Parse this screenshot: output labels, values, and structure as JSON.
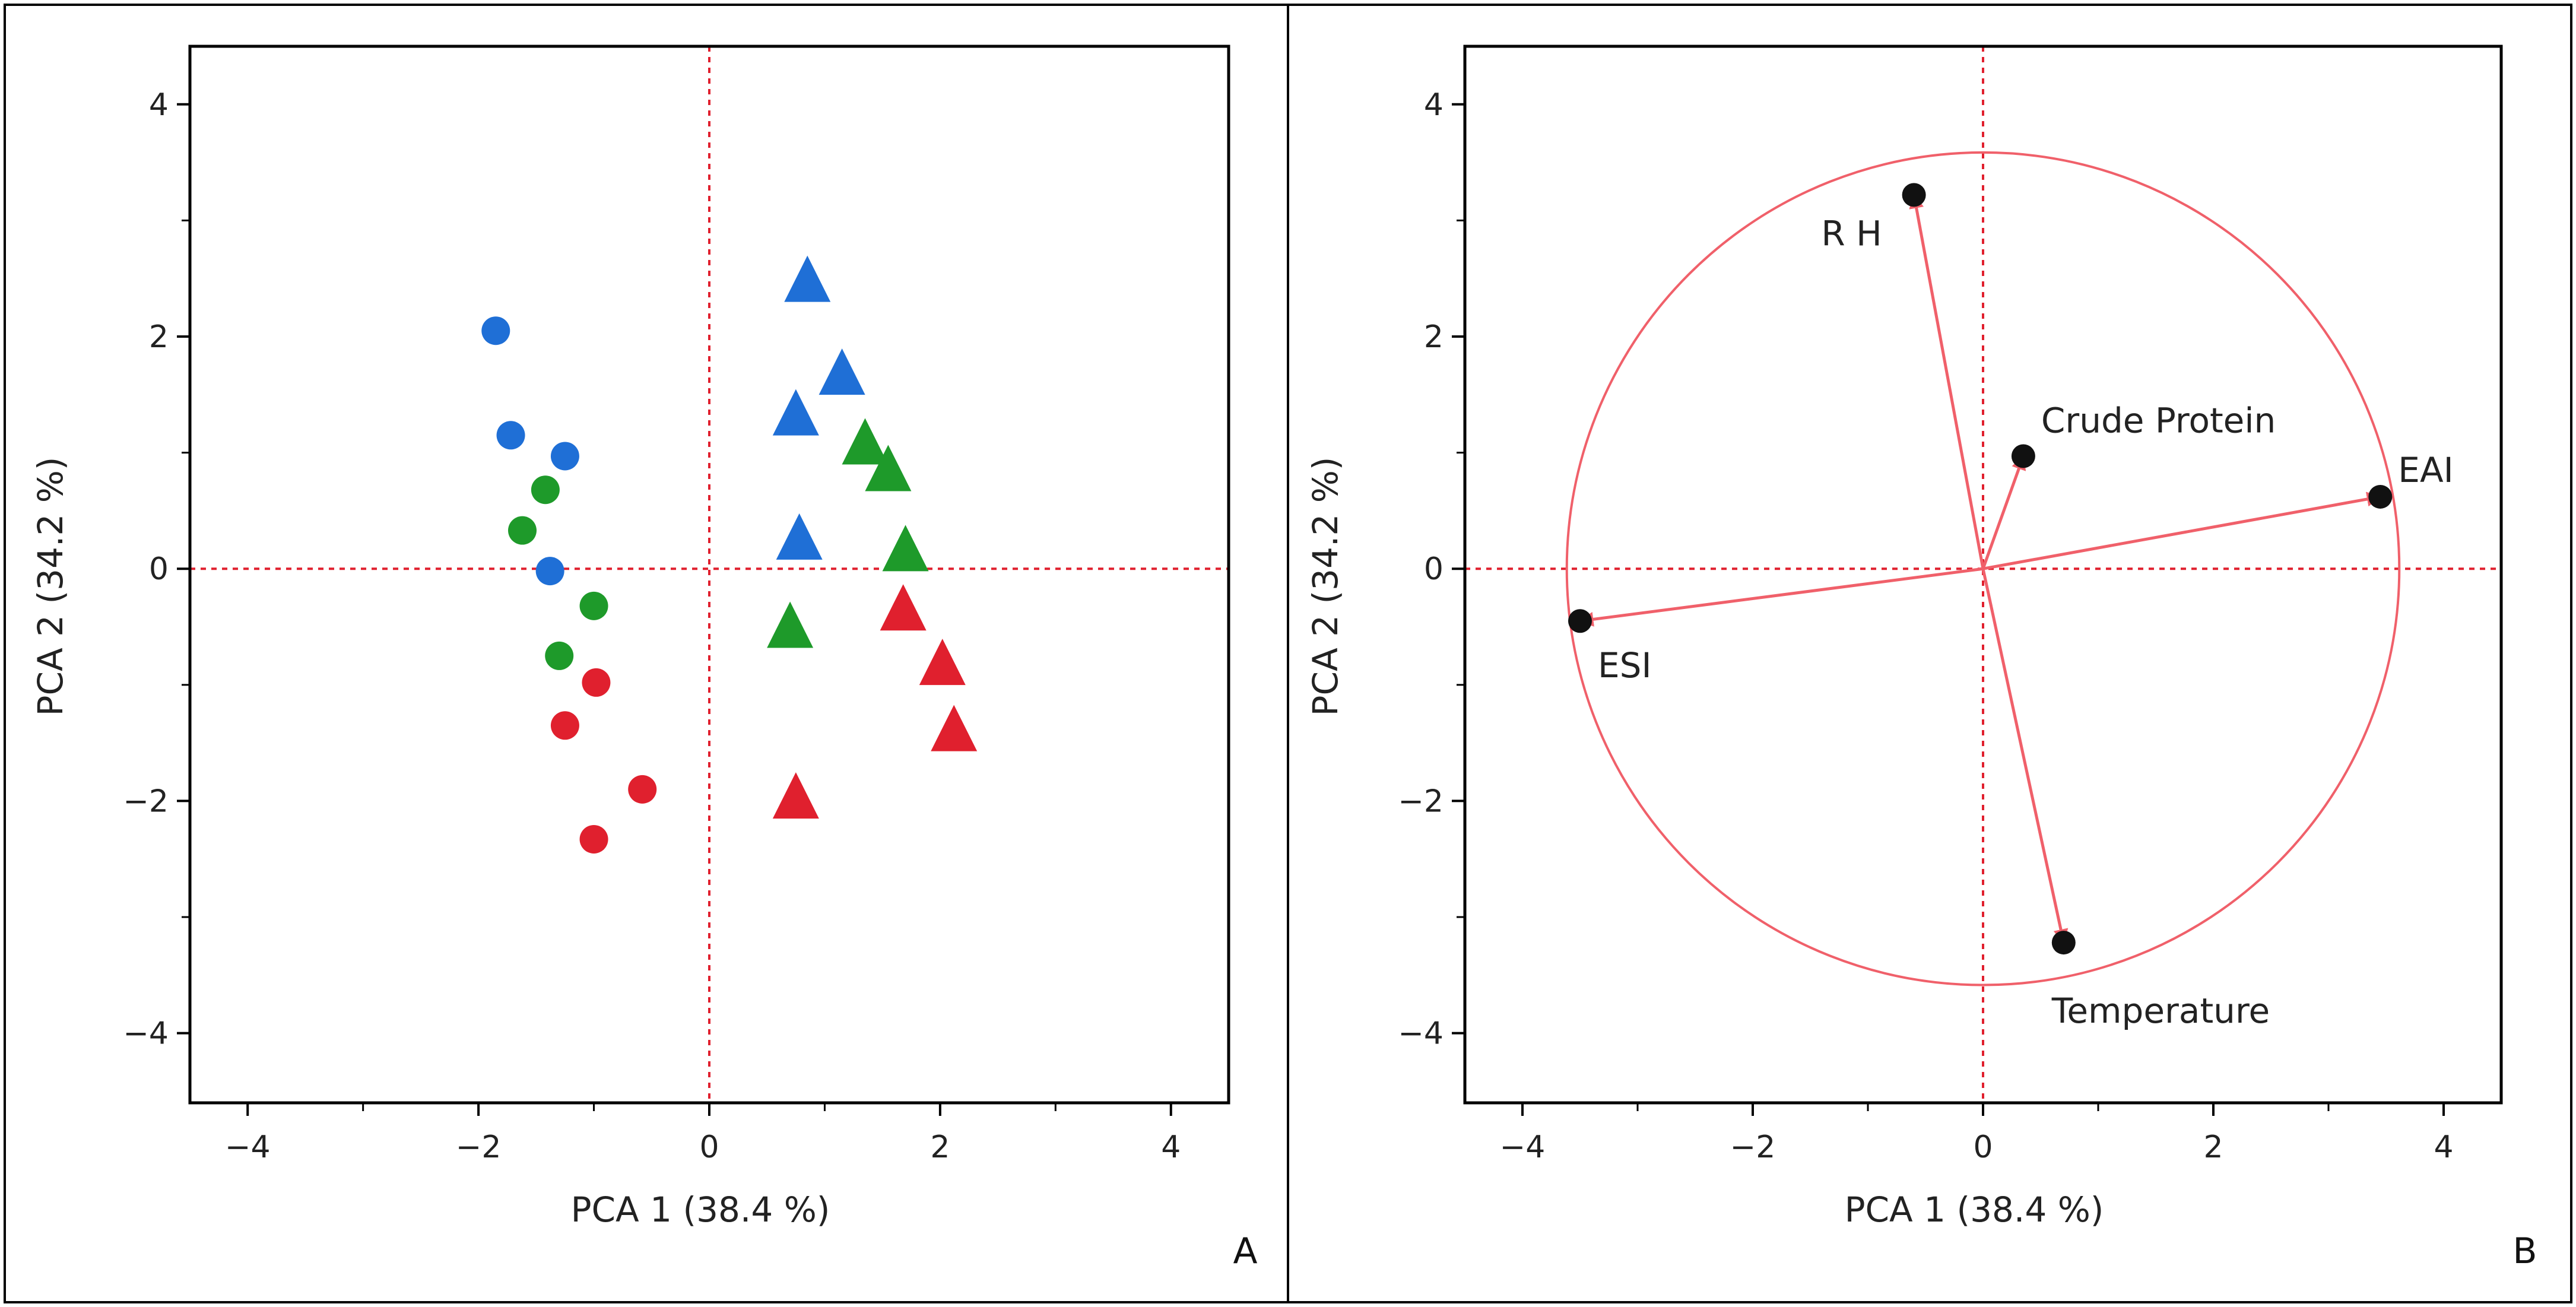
{
  "colors": {
    "blue": "#1f6fd6",
    "green": "#1e9a2a",
    "red": "#e0202e",
    "refline": "#e0202e",
    "vector": "#f0606a",
    "axis": "#000000"
  },
  "chart_data": [
    {
      "type": "scatter",
      "panel_label": "A",
      "xlabel": "PCA 1  (38.4 %)",
      "ylabel": "PCA 2  (34.2 %)",
      "xlim": [
        -4.5,
        4.5
      ],
      "ylim": [
        -4.6,
        4.5
      ],
      "xticks": [
        -4,
        -2,
        0,
        2,
        4
      ],
      "yticks": [
        -4,
        -2,
        0,
        2,
        4
      ],
      "x_tick_labels": [
        "−4",
        "−2",
        "0",
        "2",
        "4"
      ],
      "y_tick_labels": [
        "−4",
        "−2",
        "0",
        "2",
        "4"
      ],
      "reference_lines": {
        "x": 0,
        "y": 0
      },
      "series": [
        {
          "name": "blue circles",
          "marker": "circle",
          "color": "blue",
          "points": [
            [
              -1.85,
              2.05
            ],
            [
              -1.72,
              1.15
            ],
            [
              -1.25,
              0.97
            ],
            [
              -1.38,
              -0.02
            ]
          ]
        },
        {
          "name": "green circles",
          "marker": "circle",
          "color": "green",
          "points": [
            [
              -1.42,
              0.68
            ],
            [
              -1.62,
              0.33
            ],
            [
              -1.0,
              -0.32
            ],
            [
              -1.3,
              -0.75
            ]
          ]
        },
        {
          "name": "red circles",
          "marker": "circle",
          "color": "red",
          "points": [
            [
              -0.98,
              -0.98
            ],
            [
              -1.25,
              -1.35
            ],
            [
              -0.58,
              -1.9
            ],
            [
              -1.0,
              -2.33
            ]
          ]
        },
        {
          "name": "blue triangles",
          "marker": "triangle",
          "color": "blue",
          "points": [
            [
              0.85,
              2.45
            ],
            [
              1.15,
              1.65
            ],
            [
              0.75,
              1.3
            ],
            [
              0.78,
              0.23
            ]
          ]
        },
        {
          "name": "green triangles",
          "marker": "triangle",
          "color": "green",
          "points": [
            [
              1.35,
              1.05
            ],
            [
              1.55,
              0.82
            ],
            [
              1.7,
              0.13
            ],
            [
              0.7,
              -0.53
            ]
          ]
        },
        {
          "name": "red triangles",
          "marker": "triangle",
          "color": "red",
          "points": [
            [
              1.68,
              -0.38
            ],
            [
              2.02,
              -0.85
            ],
            [
              2.12,
              -1.42
            ],
            [
              0.75,
              -2.0
            ]
          ]
        }
      ]
    },
    {
      "type": "biplot",
      "panel_label": "B",
      "xlabel": "PCA 1  (38.4 %)",
      "ylabel": "PCA 2  (34.2 %)",
      "xlim": [
        -4.5,
        4.5
      ],
      "ylim": [
        -4.6,
        4.5
      ],
      "xticks": [
        -4,
        -2,
        0,
        2,
        4
      ],
      "yticks": [
        -4,
        -2,
        0,
        2,
        4
      ],
      "x_tick_labels": [
        "−4",
        "−2",
        "0",
        "2",
        "4"
      ],
      "y_tick_labels": [
        "−4",
        "−2",
        "0",
        "2",
        "4"
      ],
      "reference_lines": {
        "x": 0,
        "y": 0
      },
      "circle_radius": 3.6,
      "vectors": [
        {
          "label": "R H",
          "x": -0.6,
          "y": 3.22
        },
        {
          "label": "Crude Protein",
          "x": 0.35,
          "y": 0.97
        },
        {
          "label": "EAI",
          "x": 3.45,
          "y": 0.62
        },
        {
          "label": "ESI",
          "x": -3.5,
          "y": -0.45
        },
        {
          "label": "Temperature",
          "x": 0.7,
          "y": -3.22
        }
      ]
    }
  ]
}
